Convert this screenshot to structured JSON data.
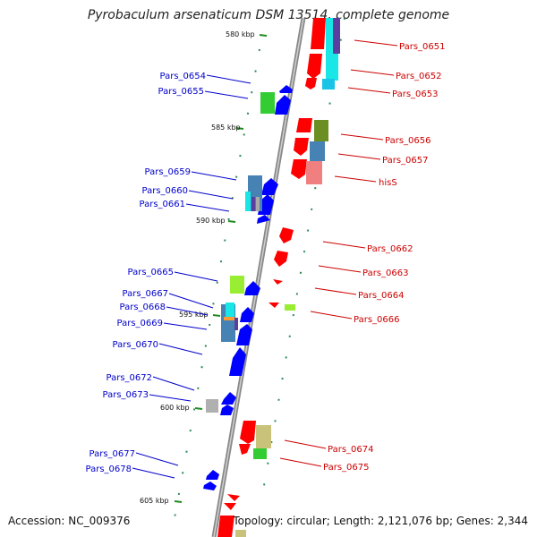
{
  "title": "Pyrobaculum arsenaticum DSM 13514, complete genome",
  "accession": "Accession: NC_009376",
  "topology": "Topology: circular; Length: 2,121,076 bp; Genes: 2,344",
  "colors": {
    "forward": "#ff0000",
    "reverse": "#0000ff",
    "backbone": "#888888",
    "tick": "#228b22",
    "cyan": "#19e6e6",
    "green": "#33cc33",
    "lightgreen": "#99ee33",
    "olive": "#6b8e23",
    "steel": "#4682b4",
    "pink": "#f08080",
    "khaki": "#c9c27a",
    "purple": "#5a3fa0",
    "gray": "#b0b0b0",
    "orange": "#ff9933"
  },
  "ticks": [
    {
      "label": "580 kbp"
    },
    {
      "label": "585 kbp"
    },
    {
      "label": "590 kbp"
    },
    {
      "label": "595 kbp"
    },
    {
      "label": "600 kbp"
    },
    {
      "label": "605 kbp"
    }
  ],
  "left_genes": [
    {
      "label": "Pars_0654"
    },
    {
      "label": "Pars_0655"
    },
    {
      "label": "Pars_0659"
    },
    {
      "label": "Pars_0660"
    },
    {
      "label": "Pars_0661"
    },
    {
      "label": "Pars_0665"
    },
    {
      "label": "Pars_0667"
    },
    {
      "label": "Pars_0668"
    },
    {
      "label": "Pars_0669"
    },
    {
      "label": "Pars_0670"
    },
    {
      "label": "Pars_0672"
    },
    {
      "label": "Pars_0673"
    },
    {
      "label": "Pars_0677"
    },
    {
      "label": "Pars_0678"
    }
  ],
  "right_genes": [
    {
      "label": "Pars_0651"
    },
    {
      "label": "Pars_0652"
    },
    {
      "label": "Pars_0653"
    },
    {
      "label": "Pars_0656"
    },
    {
      "label": "Pars_0657"
    },
    {
      "label": "hisS"
    },
    {
      "label": "Pars_0662"
    },
    {
      "label": "Pars_0663"
    },
    {
      "label": "Pars_0664"
    },
    {
      "label": "Pars_0666"
    },
    {
      "label": "Pars_0674"
    },
    {
      "label": "Pars_0675"
    }
  ]
}
